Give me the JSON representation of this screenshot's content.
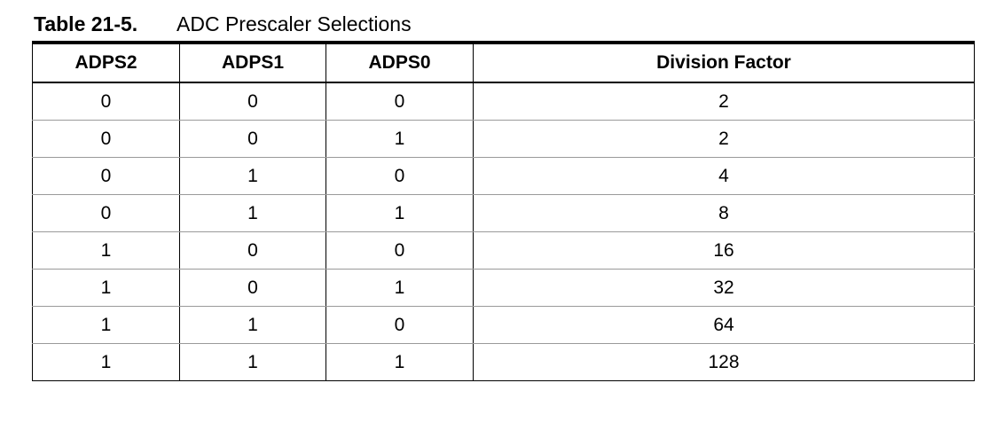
{
  "caption": {
    "number": "Table 21-5.",
    "title": "ADC Prescaler Selections"
  },
  "table": {
    "headers": [
      "ADPS2",
      "ADPS1",
      "ADPS0",
      "Division Factor"
    ],
    "rows": [
      [
        "0",
        "0",
        "0",
        "2"
      ],
      [
        "0",
        "0",
        "1",
        "2"
      ],
      [
        "0",
        "1",
        "0",
        "4"
      ],
      [
        "0",
        "1",
        "1",
        "8"
      ],
      [
        "1",
        "0",
        "0",
        "16"
      ],
      [
        "1",
        "0",
        "1",
        "32"
      ],
      [
        "1",
        "1",
        "0",
        "64"
      ],
      [
        "1",
        "1",
        "1",
        "128"
      ]
    ]
  }
}
